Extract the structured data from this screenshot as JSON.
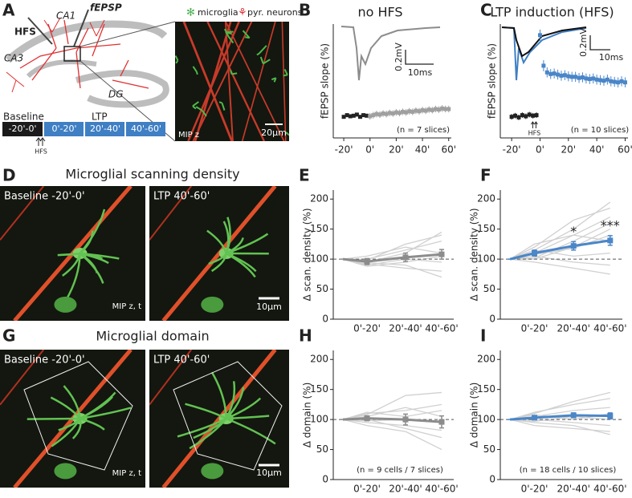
{
  "panel_letters": [
    "A",
    "B",
    "C",
    "D",
    "E",
    "F",
    "G",
    "H",
    "I"
  ],
  "schematic": {
    "regions": [
      "CA1",
      "CA3",
      "DG"
    ],
    "electrodes": [
      "HFS",
      "fEPSP"
    ],
    "timeline": {
      "phases": [
        "Baseline",
        "LTP"
      ],
      "periods": [
        "-20'-0'",
        "0'-20'",
        "20'-40'",
        "40'-60'"
      ],
      "stimulus": "HFS"
    }
  },
  "micrograph": {
    "legend": [
      "microglia",
      "pyr. neurons"
    ],
    "projection": "MIP z",
    "scale_bar": "20µm"
  },
  "image_panels": [
    {
      "title": "Microglial scanning density",
      "images": [
        "Baseline -20'-0'",
        "LTP 40'-60'"
      ],
      "projection": "MIP z, t",
      "scale_bar": "10µm"
    },
    {
      "title": "Microglial domain",
      "images": [
        "Baseline -20'-0'",
        "LTP 40'-60'"
      ],
      "projection": "MIP z, t",
      "scale_bar": "10µm"
    }
  ],
  "chart_data": [
    {
      "type": "scatter",
      "title": "no HFS",
      "y_label": "fEPSP slope (%)",
      "xlim": [
        -28,
        62
      ],
      "ylim": [
        60,
        265
      ],
      "xticks": [
        {
          "value": -20,
          "label": "-20'"
        },
        {
          "value": 0,
          "label": "0'"
        },
        {
          "value": 20,
          "label": "20'"
        },
        {
          "value": 40,
          "label": "40'"
        },
        {
          "value": 60,
          "label": "60'"
        }
      ],
      "series": [
        {
          "color": "#222222",
          "x": [
            -20,
            -17.5,
            -15,
            -12.5,
            -10,
            -7.5,
            -5,
            -2.5
          ],
          "values": [
            98,
            101,
            99,
            100,
            102,
            98,
            101,
            100
          ],
          "errors": [
            3,
            3,
            3,
            3,
            3,
            3,
            3,
            3
          ]
        },
        {
          "color": "#a0a0a0",
          "x": [
            0,
            2.5,
            5,
            7.5,
            10,
            12.5,
            15,
            17.5,
            20,
            22.5,
            25,
            27.5,
            30,
            32.5,
            35,
            37.5,
            40,
            42.5,
            45,
            47.5,
            50,
            52.5,
            55,
            57.5,
            60
          ],
          "values": [
            99,
            101,
            103,
            102,
            104,
            103,
            105,
            104,
            106,
            105,
            107,
            106,
            108,
            107,
            109,
            108,
            110,
            109,
            111,
            110,
            112,
            111,
            113,
            112,
            112
          ],
          "errors": [
            6,
            6,
            6,
            6,
            6,
            6,
            6,
            6,
            6,
            6,
            6,
            6,
            6,
            6,
            6,
            6,
            6,
            6,
            6,
            6,
            6,
            6,
            6,
            6,
            6
          ]
        }
      ],
      "annotation": "(n = 7 slices)",
      "inset": {
        "scale_y": "0.2mV",
        "scale_x": "10ms"
      }
    },
    {
      "type": "scatter",
      "title": "LTP induction (HFS)",
      "y_label": "fEPSP slope (%)",
      "xlim": [
        -28,
        62
      ],
      "ylim": [
        60,
        265
      ],
      "xticks": [
        {
          "value": -20,
          "label": "-20'"
        },
        {
          "value": 0,
          "label": "0'"
        },
        {
          "value": 20,
          "label": "20'"
        },
        {
          "value": 40,
          "label": "40'"
        },
        {
          "value": 60,
          "label": "60'"
        }
      ],
      "series": [
        {
          "color": "#222222",
          "x": [
            -20,
            -17.5,
            -15,
            -12.5,
            -10,
            -7.5,
            -5,
            -2.5
          ],
          "values": [
            98,
            100,
            97,
            101,
            99,
            102,
            100,
            101
          ],
          "errors": [
            5,
            5,
            5,
            5,
            5,
            5,
            5,
            5
          ]
        },
        {
          "color": "#4a86c8",
          "x": [
            0,
            2.5,
            5,
            7.5,
            10,
            12.5,
            15,
            17.5,
            20,
            22.5,
            25,
            27.5,
            30,
            32.5,
            35,
            37.5,
            40,
            42.5,
            45,
            47.5,
            50,
            52.5,
            55,
            57.5,
            60
          ],
          "values": [
            245,
            190,
            178,
            175,
            176,
            174,
            172,
            173,
            171,
            170,
            170,
            168,
            169,
            167,
            166,
            167,
            165,
            164,
            163,
            165,
            162,
            161,
            160,
            162,
            160
          ],
          "errors": [
            10,
            10,
            9,
            9,
            9,
            9,
            9,
            9,
            9,
            9,
            9,
            9,
            9,
            9,
            9,
            9,
            9,
            9,
            9,
            9,
            9,
            9,
            9,
            9,
            9
          ]
        }
      ],
      "annotation": "(n = 10 slices)",
      "stimulus_label": "HFS",
      "inset": {
        "scale_y": "0.2mV",
        "scale_x": "10ms"
      }
    },
    {
      "type": "line",
      "y_label": "Δ scan. density (%)",
      "categories": [
        null,
        "0'-20'",
        "20'-40'",
        "40'-60'"
      ],
      "ylim": [
        0,
        215
      ],
      "yticks": [
        0,
        50,
        100,
        150,
        200
      ],
      "reference_line": 100,
      "series": [
        {
          "color": "#8c8c8c",
          "values": [
            100,
            96,
            103,
            108
          ],
          "errors": [
            0,
            5,
            7,
            8
          ]
        }
      ],
      "traces": {
        "color": "#d0d0d0",
        "values": [
          [
            100,
            95,
            110,
            145
          ],
          [
            100,
            90,
            100,
            95
          ],
          [
            100,
            100,
            115,
            130
          ],
          [
            100,
            92,
            85,
            80
          ],
          [
            100,
            105,
            120,
            110
          ],
          [
            100,
            88,
            95,
            105
          ],
          [
            100,
            98,
            125,
            140
          ],
          [
            100,
            94,
            90,
            70
          ]
        ]
      }
    },
    {
      "type": "line",
      "y_label": "Δ scan. density (%)",
      "categories": [
        null,
        "0'-20'",
        "20'-40'",
        "40'-60'"
      ],
      "ylim": [
        0,
        215
      ],
      "yticks": [
        0,
        50,
        100,
        150,
        200
      ],
      "reference_line": 100,
      "series": [
        {
          "color": "#4a86c8",
          "values": [
            100,
            110,
            122,
            131
          ],
          "errors": [
            0,
            5,
            7,
            8
          ]
        }
      ],
      "annotations": [
        null,
        null,
        "*",
        "***"
      ],
      "traces": {
        "color": "#d0d0d0",
        "values": [
          [
            100,
            115,
            150,
            195
          ],
          [
            100,
            110,
            140,
            170
          ],
          [
            100,
            120,
            165,
            185
          ],
          [
            100,
            105,
            95,
            90
          ],
          [
            100,
            100,
            120,
            150
          ],
          [
            100,
            125,
            140,
            130
          ],
          [
            100,
            95,
            85,
            75
          ],
          [
            100,
            108,
            118,
            140
          ],
          [
            100,
            115,
            105,
            110
          ],
          [
            100,
            102,
            130,
            160
          ]
        ]
      }
    },
    {
      "type": "line",
      "y_label": "Δ domain (%)",
      "categories": [
        null,
        "0'-20'",
        "20'-40'",
        "40'-60'"
      ],
      "ylim": [
        0,
        215
      ],
      "yticks": [
        0,
        50,
        100,
        150,
        200
      ],
      "reference_line": 100,
      "series": [
        {
          "color": "#8c8c8c",
          "values": [
            100,
            102,
            100,
            96
          ],
          "errors": [
            0,
            4,
            9,
            10
          ]
        }
      ],
      "annotation": "(n = 9 cells / 7 slices)",
      "traces": {
        "color": "#d0d0d0",
        "values": [
          [
            100,
            108,
            140,
            145
          ],
          [
            100,
            95,
            90,
            82
          ],
          [
            100,
            110,
            115,
            125
          ],
          [
            100,
            100,
            85,
            70
          ],
          [
            100,
            90,
            80,
            50
          ],
          [
            100,
            105,
            120,
            105
          ],
          [
            100,
            98,
            100,
            95
          ],
          [
            100,
            112,
            105,
            115
          ]
        ]
      }
    },
    {
      "type": "line",
      "y_label": "Δ domain (%)",
      "categories": [
        null,
        "0'-20'",
        "20'-40'",
        "40'-60'"
      ],
      "ylim": [
        0,
        215
      ],
      "yticks": [
        0,
        50,
        100,
        150,
        200
      ],
      "reference_line": 100,
      "series": [
        {
          "color": "#4a86c8",
          "values": [
            100,
            103,
            107,
            106
          ],
          "errors": [
            0,
            3,
            4,
            5
          ]
        }
      ],
      "annotation": "(n = 18 cells / 10 slices)",
      "traces": {
        "color": "#d0d0d0",
        "values": [
          [
            100,
            110,
            130,
            145
          ],
          [
            100,
            95,
            90,
            75
          ],
          [
            100,
            105,
            115,
            120
          ],
          [
            100,
            100,
            95,
            90
          ],
          [
            100,
            112,
            125,
            135
          ],
          [
            100,
            90,
            85,
            80
          ],
          [
            100,
            108,
            100,
            110
          ],
          [
            100,
            97,
            105,
            100
          ]
        ]
      }
    }
  ]
}
